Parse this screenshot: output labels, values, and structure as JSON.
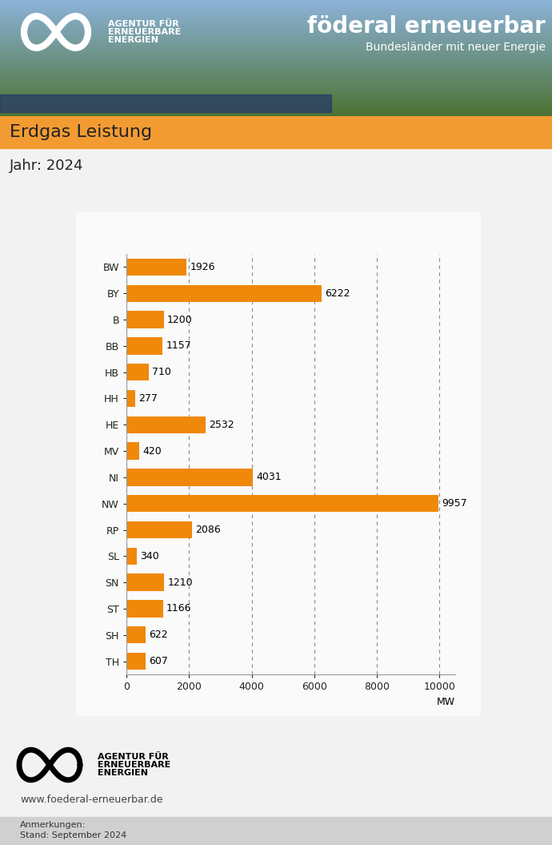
{
  "chart_data": {
    "type": "bar",
    "orientation": "horizontal",
    "title": "Erdgas Leistung",
    "subtitle": "Jahr: 2024",
    "x_label": "MW",
    "categories": [
      "BW",
      "BY",
      "B",
      "BB",
      "HB",
      "HH",
      "HE",
      "MV",
      "NI",
      "NW",
      "RP",
      "SL",
      "SN",
      "ST",
      "SH",
      "TH"
    ],
    "values": [
      1926,
      6222,
      1200,
      1157,
      710,
      277,
      2532,
      420,
      4031,
      9957,
      2086,
      340,
      1210,
      1166,
      622,
      607
    ],
    "color": "#f0880a",
    "xlim": [
      0,
      10500
    ],
    "xticks": [
      0,
      2000,
      4000,
      6000,
      8000,
      10000
    ],
    "grid": true,
    "data_labels": true
  },
  "page": {
    "logo": "AGENTUR FÜR\nERNEUERBARE\nENERGIEN",
    "brand": "föderal erneuerbar",
    "tagline": "Bundesländer mit neuer Energie",
    "url": "www.foederal-erneuerbar.de",
    "notes": [
      "Anmerkungen:",
      "Stand: September 2024"
    ]
  }
}
